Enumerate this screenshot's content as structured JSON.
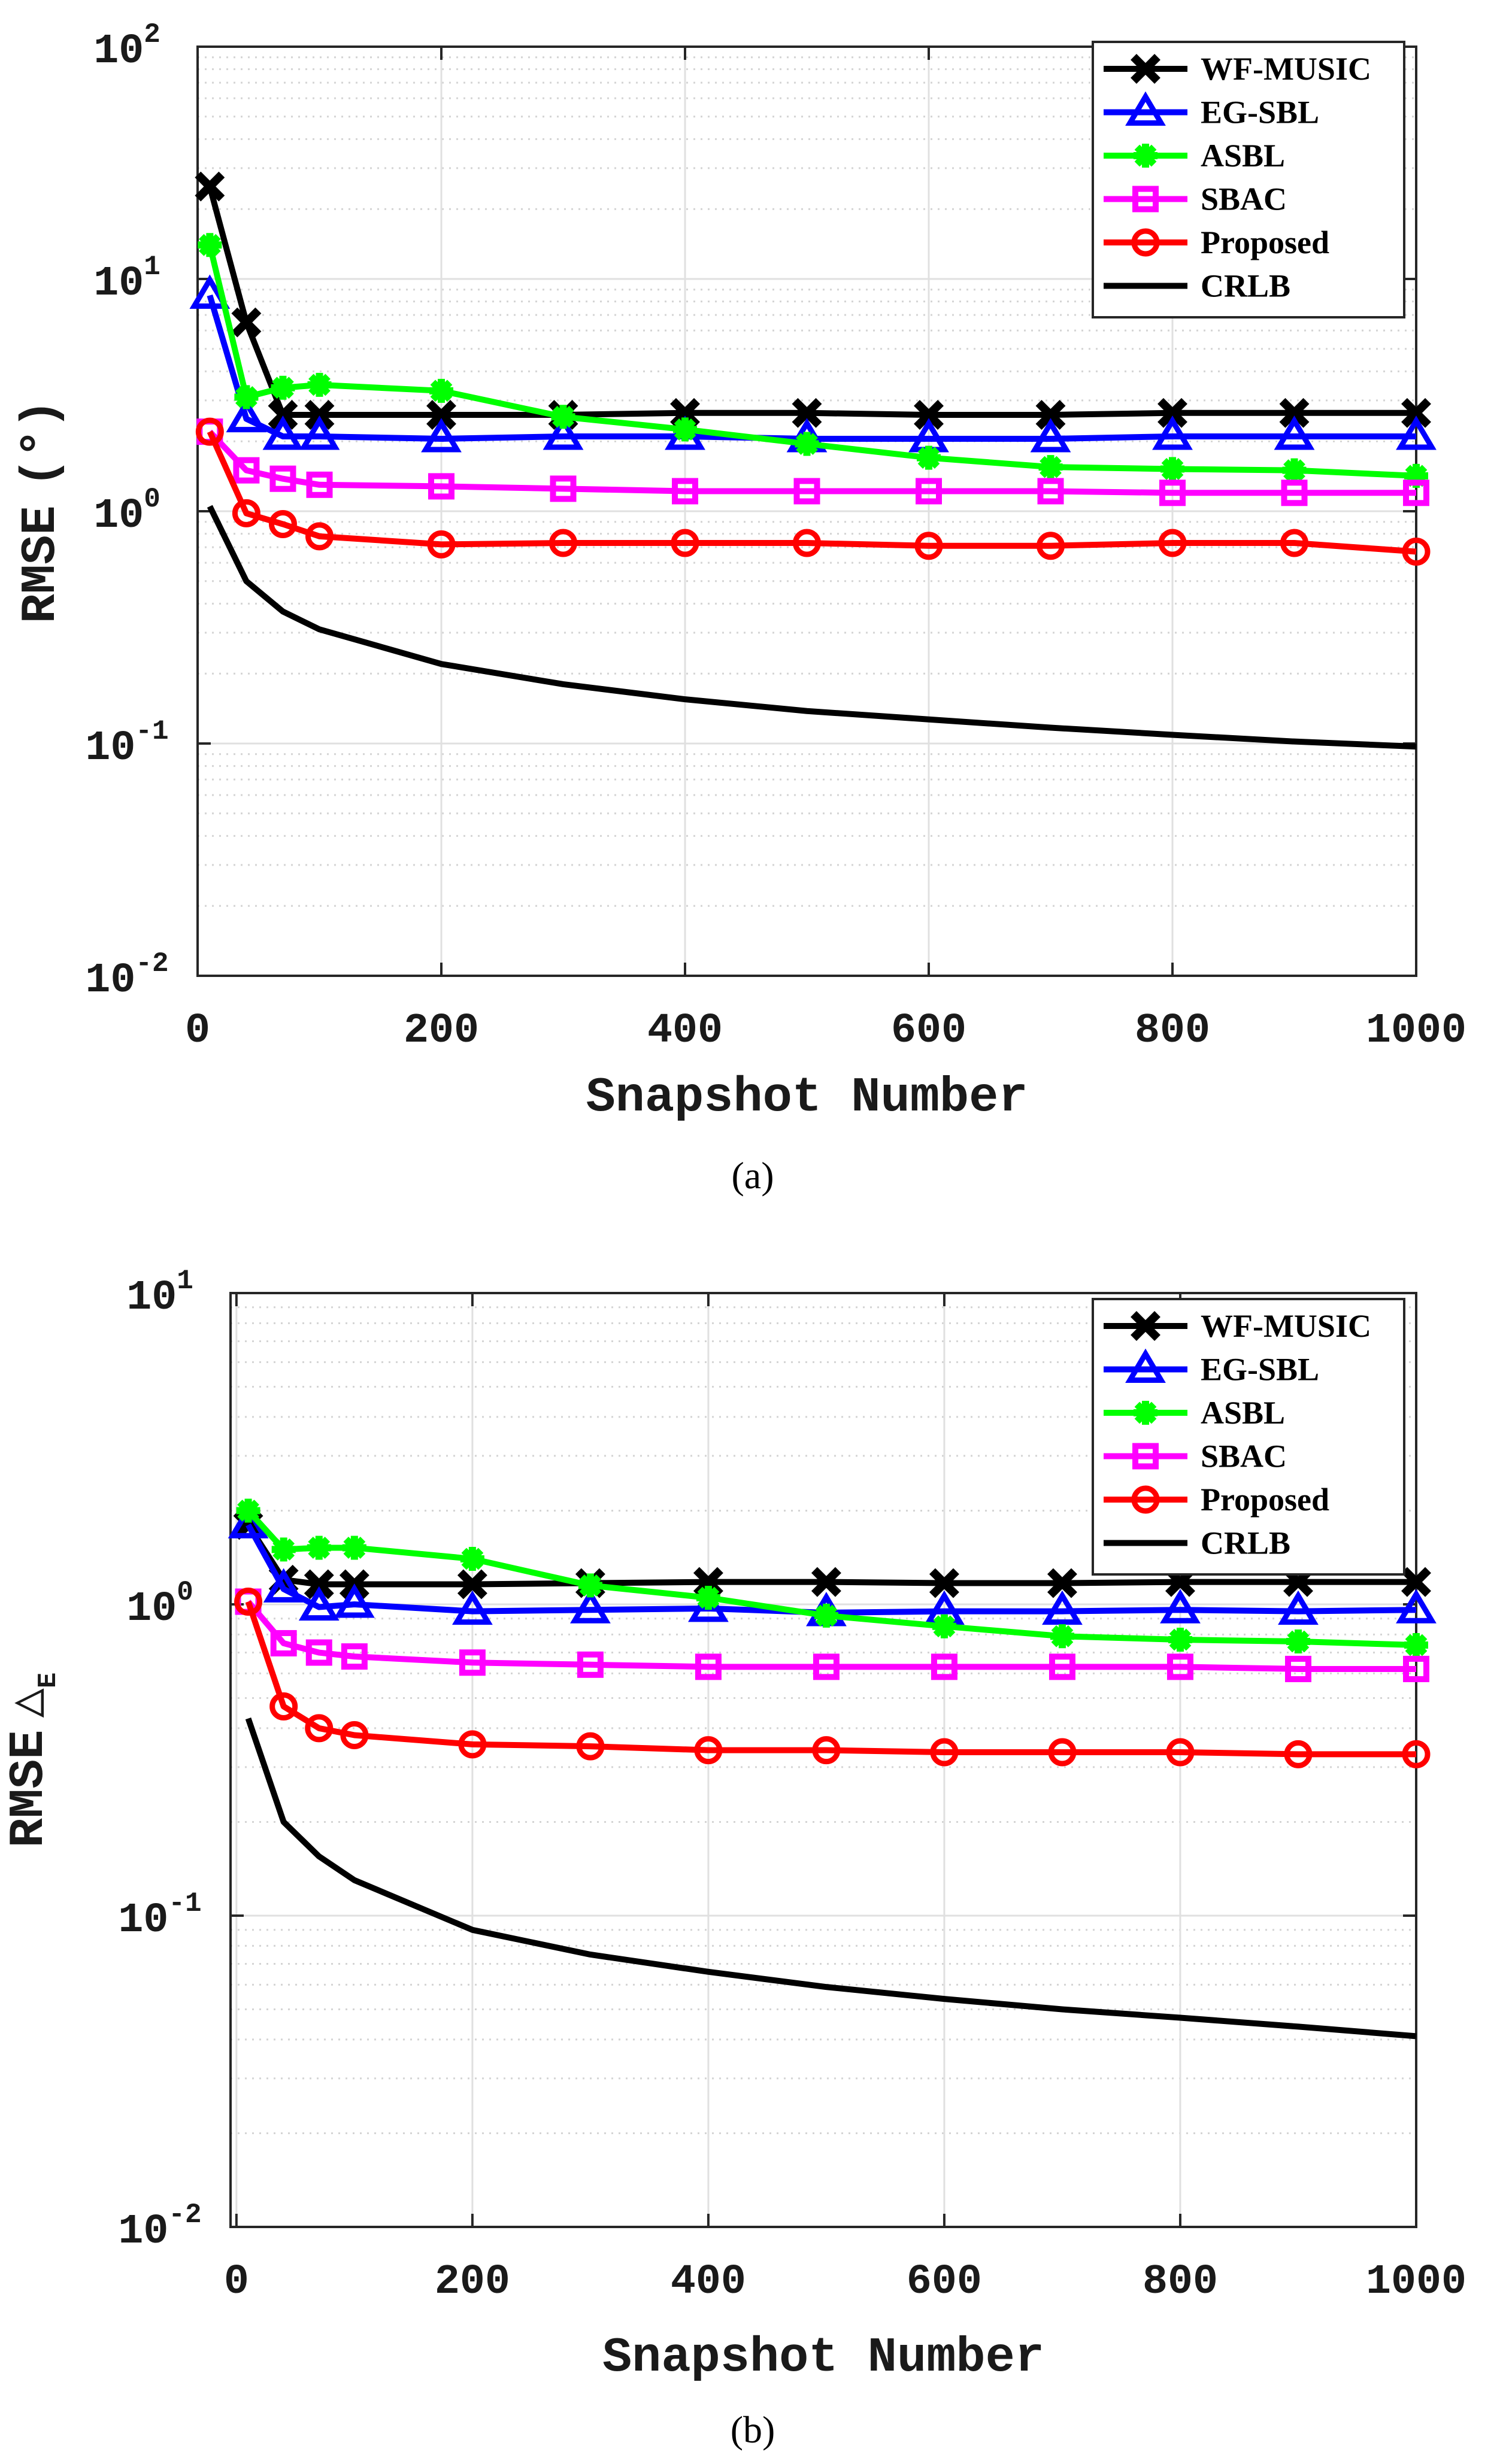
{
  "chart_data": [
    {
      "type": "line",
      "panel_caption": "(a)",
      "xlabel": "Snapshot Number",
      "ylabel_main": "RMSE",
      "ylabel_unit": "(°)",
      "yscale": "log",
      "xlim": [
        0,
        1000
      ],
      "ylim": [
        0.01,
        100
      ],
      "xticks": [
        0,
        200,
        400,
        600,
        800,
        1000
      ],
      "yticks": [
        {
          "base": "10",
          "exp": "-2",
          "value": 0.01
        },
        {
          "base": "10",
          "exp": "-1",
          "value": 0.1
        },
        {
          "base": "10",
          "exp": "0",
          "value": 1
        },
        {
          "base": "10",
          "exp": "1",
          "value": 10
        },
        {
          "base": "10",
          "exp": "2",
          "value": 100
        }
      ],
      "grid": true,
      "legend_position": "top-right",
      "x": [
        10,
        40,
        70,
        100,
        200,
        300,
        400,
        500,
        600,
        700,
        800,
        900,
        1000
      ],
      "series": [
        {
          "name": "WF-MUSIC",
          "color": "#000000",
          "marker": "x",
          "values": [
            25,
            6.5,
            2.6,
            2.6,
            2.6,
            2.6,
            2.65,
            2.65,
            2.6,
            2.6,
            2.65,
            2.65,
            2.65
          ]
        },
        {
          "name": "EG-SBL",
          "color": "#0000ff",
          "marker": "triangle",
          "values": [
            8.5,
            2.5,
            2.1,
            2.1,
            2.05,
            2.1,
            2.1,
            2.05,
            2.05,
            2.05,
            2.1,
            2.1,
            2.1
          ]
        },
        {
          "name": "ASBL",
          "color": "#00ff00",
          "marker": "asterisk",
          "values": [
            14,
            3.1,
            3.4,
            3.5,
            3.3,
            2.55,
            2.25,
            1.95,
            1.7,
            1.55,
            1.52,
            1.5,
            1.42
          ]
        },
        {
          "name": "SBAC",
          "color": "#ff00ff",
          "marker": "square",
          "values": [
            2.2,
            1.5,
            1.38,
            1.3,
            1.28,
            1.25,
            1.22,
            1.22,
            1.22,
            1.22,
            1.2,
            1.2,
            1.2
          ]
        },
        {
          "name": "Proposed",
          "color": "#ff0000",
          "marker": "circle",
          "values": [
            2.2,
            0.98,
            0.88,
            0.78,
            0.72,
            0.73,
            0.73,
            0.73,
            0.71,
            0.71,
            0.73,
            0.73,
            0.67
          ]
        },
        {
          "name": "CRLB",
          "color": "#000000",
          "marker": "none",
          "x": [
            10,
            40,
            70,
            100,
            200,
            300,
            400,
            500,
            600,
            700,
            800,
            900,
            1000
          ],
          "values": [
            1.05,
            0.5,
            0.37,
            0.31,
            0.22,
            0.18,
            0.155,
            0.138,
            0.127,
            0.117,
            0.109,
            0.102,
            0.097
          ]
        }
      ]
    },
    {
      "type": "line",
      "panel_caption": "(b)",
      "xlabel": "Snapshot Number",
      "ylabel_main": "RMSE",
      "ylabel_symbol": "△",
      "ylabel_subscript": "E",
      "yscale": "log",
      "xlim": [
        -5,
        1000
      ],
      "ylim": [
        0.01,
        10
      ],
      "xticks": [
        0,
        200,
        400,
        600,
        800,
        1000
      ],
      "yticks": [
        {
          "base": "10",
          "exp": "-2",
          "value": 0.01
        },
        {
          "base": "10",
          "exp": "-1",
          "value": 0.1
        },
        {
          "base": "10",
          "exp": "0",
          "value": 1
        },
        {
          "base": "10",
          "exp": "1",
          "value": 10
        }
      ],
      "grid": true,
      "legend_position": "top-right",
      "x": [
        10,
        40,
        70,
        100,
        200,
        300,
        400,
        500,
        600,
        700,
        800,
        900,
        1000
      ],
      "series": [
        {
          "name": "WF-MUSIC",
          "color": "#000000",
          "marker": "x",
          "values": [
            1.8,
            1.2,
            1.16,
            1.16,
            1.16,
            1.17,
            1.18,
            1.18,
            1.17,
            1.17,
            1.18,
            1.18,
            1.18
          ]
        },
        {
          "name": "EG-SBL",
          "color": "#0000ff",
          "marker": "triangle",
          "values": [
            1.8,
            1.12,
            0.98,
            1.0,
            0.95,
            0.96,
            0.97,
            0.94,
            0.95,
            0.95,
            0.96,
            0.95,
            0.96
          ]
        },
        {
          "name": "ASBL",
          "color": "#00ff00",
          "marker": "asterisk",
          "values": [
            2.0,
            1.5,
            1.52,
            1.52,
            1.4,
            1.15,
            1.05,
            0.92,
            0.85,
            0.79,
            0.77,
            0.76,
            0.74
          ]
        },
        {
          "name": "SBAC",
          "color": "#ff00ff",
          "marker": "square",
          "values": [
            1.02,
            0.75,
            0.7,
            0.68,
            0.65,
            0.64,
            0.63,
            0.63,
            0.63,
            0.63,
            0.63,
            0.62,
            0.62
          ]
        },
        {
          "name": "Proposed",
          "color": "#ff0000",
          "marker": "circle",
          "values": [
            1.02,
            0.47,
            0.4,
            0.38,
            0.355,
            0.35,
            0.34,
            0.34,
            0.335,
            0.335,
            0.335,
            0.33,
            0.33
          ]
        },
        {
          "name": "CRLB",
          "color": "#000000",
          "marker": "none",
          "x": [
            10,
            40,
            70,
            100,
            200,
            300,
            400,
            500,
            600,
            700,
            800,
            900,
            1000
          ],
          "values": [
            0.43,
            0.2,
            0.155,
            0.13,
            0.09,
            0.075,
            0.066,
            0.059,
            0.054,
            0.05,
            0.047,
            0.044,
            0.041
          ]
        }
      ]
    }
  ]
}
